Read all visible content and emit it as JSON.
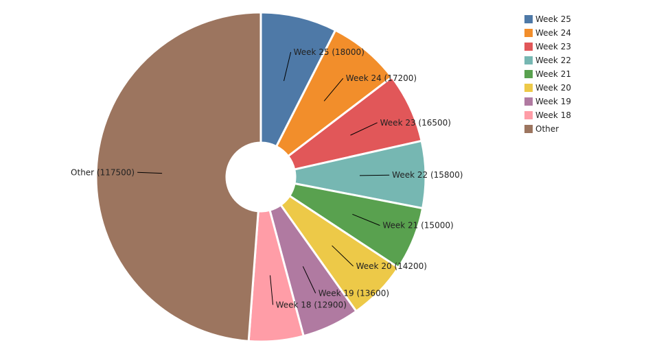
{
  "chart_data": {
    "type": "pie",
    "hole": true,
    "categories": [
      "Week 25",
      "Week 24",
      "Week 23",
      "Week 22",
      "Week 21",
      "Week 20",
      "Week 19",
      "Week 18",
      "Other"
    ],
    "values": [
      18000,
      17200,
      16500,
      15800,
      15000,
      14200,
      13600,
      12900,
      117500
    ],
    "colors": [
      "#4e79a7",
      "#f28e2b",
      "#e15759",
      "#76b7b2",
      "#59a14f",
      "#edc948",
      "#b07aa1",
      "#ff9da7",
      "#9c755f"
    ],
    "labels": [
      "Week 25 (18000)",
      "Week 24 (17200)",
      "Week 23 (16500)",
      "Week 22 (15800)",
      "Week 21 (15000)",
      "Week 20 (14200)",
      "Week 19 (13600)",
      "Week 18 (12900)",
      "Other (117500)"
    ],
    "legend_position": "top-right"
  }
}
